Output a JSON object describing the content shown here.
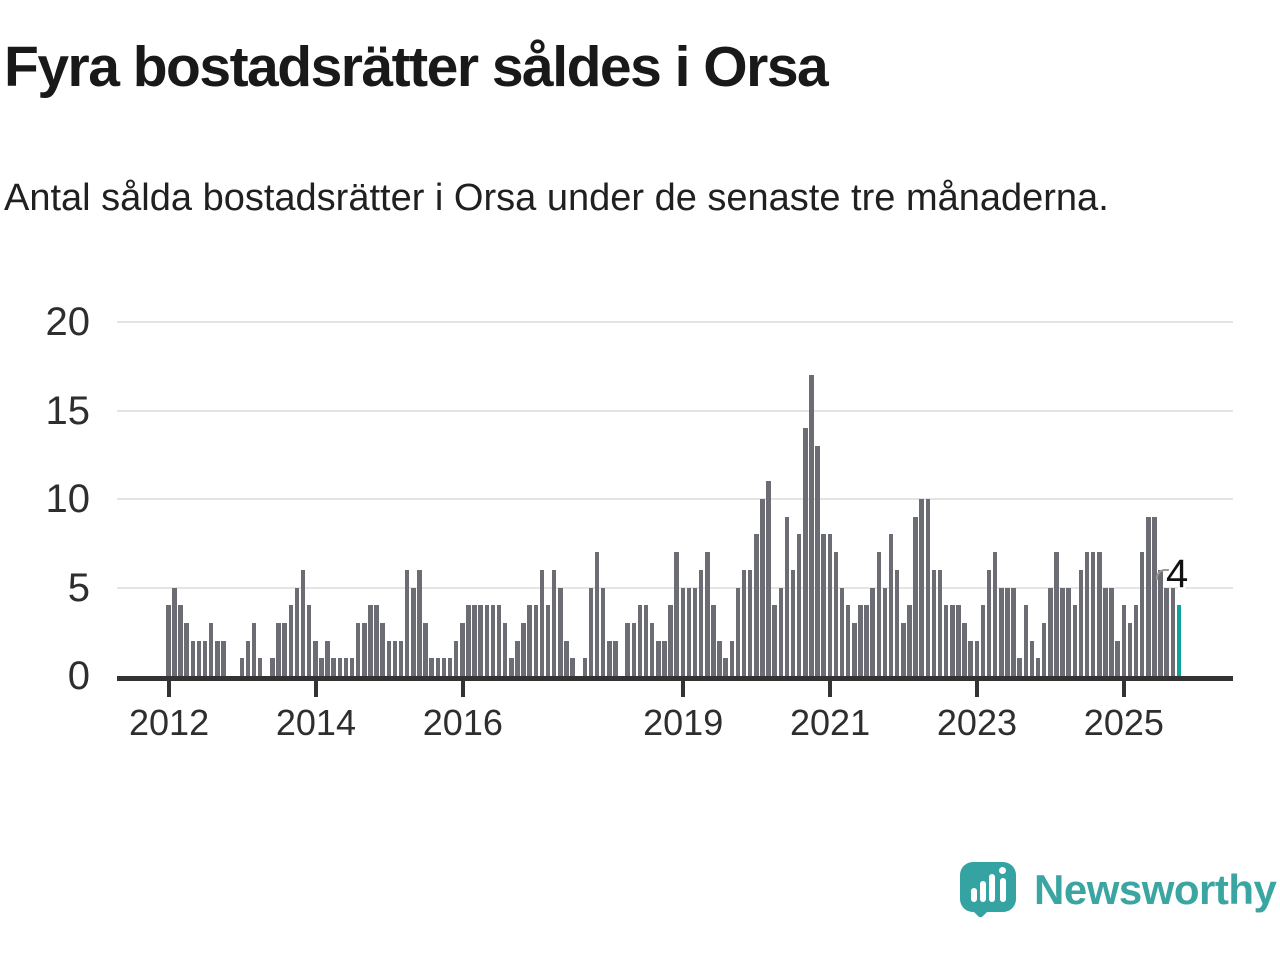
{
  "header": {
    "title": "Fyra bostadsrätter såldes i Orsa",
    "subtitle": "Antal sålda bostadsrätter i Orsa under de senaste tre månaderna."
  },
  "chart_data": {
    "type": "bar",
    "title": "Fyra bostadsrätter såldes i Orsa",
    "subtitle": "Antal sålda bostadsrätter i Orsa under de senaste tre månaderna.",
    "frequency": "monthly",
    "start_period": "2012-01",
    "end_period": "2025-10",
    "values": [
      4,
      5,
      4,
      3,
      2,
      2,
      2,
      3,
      2,
      2,
      0,
      0,
      1,
      2,
      3,
      1,
      0,
      1,
      3,
      3,
      4,
      5,
      6,
      4,
      2,
      1,
      2,
      1,
      1,
      1,
      1,
      3,
      3,
      4,
      4,
      3,
      2,
      2,
      2,
      6,
      5,
      6,
      3,
      1,
      1,
      1,
      1,
      2,
      3,
      4,
      4,
      4,
      4,
      4,
      4,
      3,
      1,
      2,
      3,
      4,
      4,
      6,
      4,
      6,
      5,
      2,
      1,
      0,
      1,
      5,
      7,
      5,
      2,
      2,
      0,
      3,
      3,
      4,
      4,
      3,
      2,
      2,
      4,
      7,
      5,
      5,
      5,
      6,
      7,
      4,
      2,
      1,
      2,
      5,
      6,
      6,
      8,
      10,
      11,
      4,
      5,
      9,
      6,
      8,
      14,
      17,
      13,
      8,
      8,
      7,
      5,
      4,
      3,
      4,
      4,
      5,
      7,
      5,
      8,
      6,
      3,
      4,
      9,
      10,
      10,
      6,
      6,
      4,
      4,
      4,
      3,
      2,
      2,
      4,
      6,
      7,
      5,
      5,
      5,
      1,
      4,
      2,
      1,
      3,
      5,
      7,
      5,
      5,
      4,
      6,
      7,
      7,
      7,
      5,
      5,
      2,
      4,
      3,
      4,
      7,
      9,
      9,
      6,
      5,
      5,
      4
    ],
    "highlight_last_bar": true,
    "last_value_label": "4",
    "ylim": [
      0,
      20
    ],
    "yticks": [
      0,
      5,
      10,
      15,
      20
    ],
    "xticks": [
      {
        "label": "2012",
        "index": 0
      },
      {
        "label": "2014",
        "index": 24
      },
      {
        "label": "2016",
        "index": 48
      },
      {
        "label": "2019",
        "index": 84
      },
      {
        "label": "2021",
        "index": 108
      },
      {
        "label": "2023",
        "index": 132
      },
      {
        "label": "2025",
        "index": 156
      }
    ],
    "grid": "horizontal",
    "legend": "none",
    "colors": {
      "bar": "#6c6c74",
      "highlight": "#0da39d",
      "gridline": "#e4e4e4",
      "axis": "#333333",
      "text": "#191919"
    }
  },
  "footer": {
    "brand": "Newsworthy",
    "logo_color": "#35a3a1"
  }
}
